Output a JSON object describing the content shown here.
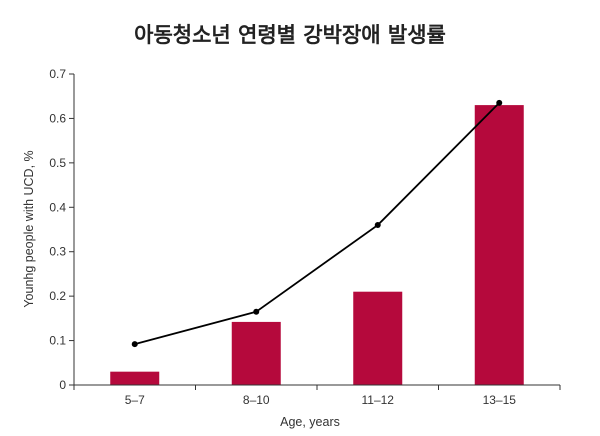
{
  "chart_data": {
    "type": "bar",
    "title": "아동청소년 연령별 강박장애 발생률",
    "xlabel": "Age, years",
    "ylabel": "Younhg people with UCD, %",
    "categories": [
      "5–7",
      "8–10",
      "11–12",
      "13–15"
    ],
    "ylim": [
      0,
      0.7
    ],
    "yticks": [
      "0",
      "0.1",
      "0.2",
      "0.3",
      "0.4",
      "0.5",
      "0.6",
      "0.7"
    ],
    "grid": false,
    "legend": "none",
    "colors": {
      "bar": "#b5093c",
      "line": "#000000"
    },
    "series": [
      {
        "type": "bar",
        "values": [
          0.03,
          0.142,
          0.21,
          0.63
        ]
      },
      {
        "type": "line",
        "values": [
          0.092,
          0.165,
          0.36,
          0.635
        ]
      }
    ]
  }
}
